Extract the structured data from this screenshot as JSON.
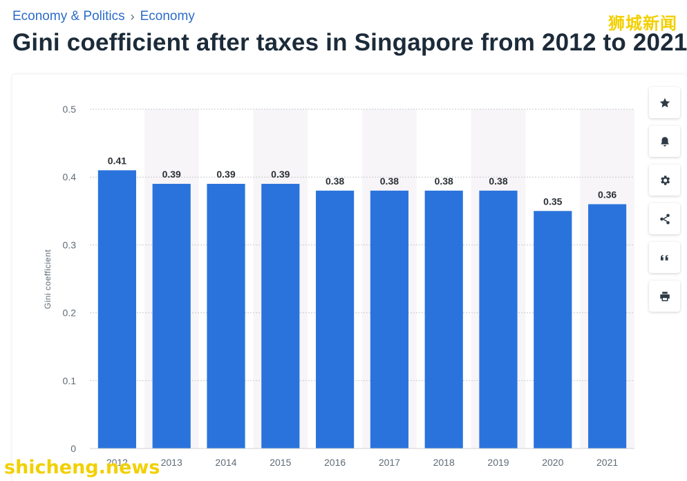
{
  "breadcrumb": {
    "items": [
      "Economy & Politics",
      "Economy"
    ],
    "separator": "›"
  },
  "title": "Gini coefficient after taxes in Singapore from 2012 to 2021",
  "watermarks": {
    "top": "狮城新闻",
    "bottom": "shicheng.news"
  },
  "toolbar": {
    "icons": [
      "star-icon",
      "bell-icon",
      "gear-icon",
      "share-icon",
      "quote-icon",
      "print-icon"
    ]
  },
  "colors": {
    "bar": "#2a73dc",
    "band": "#f7f5f8",
    "grid": "#c7c7c7",
    "link": "#2b6cc8"
  },
  "chart_data": {
    "type": "bar",
    "categories": [
      "2012",
      "2013",
      "2014",
      "2015",
      "2016",
      "2017",
      "2018",
      "2019",
      "2020",
      "2021"
    ],
    "values": [
      0.41,
      0.39,
      0.39,
      0.39,
      0.38,
      0.38,
      0.38,
      0.38,
      0.35,
      0.36
    ],
    "value_labels": [
      "0.41",
      "0.39",
      "0.39",
      "0.39",
      "0.38",
      "0.38",
      "0.38",
      "0.38",
      "0.35",
      "0.36"
    ],
    "ylabel": "Gini coefficient",
    "ylim": [
      0,
      0.5
    ],
    "yticks": [
      "0",
      "0.1",
      "0.2",
      "0.3",
      "0.4",
      "0.5"
    ],
    "grid": true,
    "legend": "none"
  }
}
